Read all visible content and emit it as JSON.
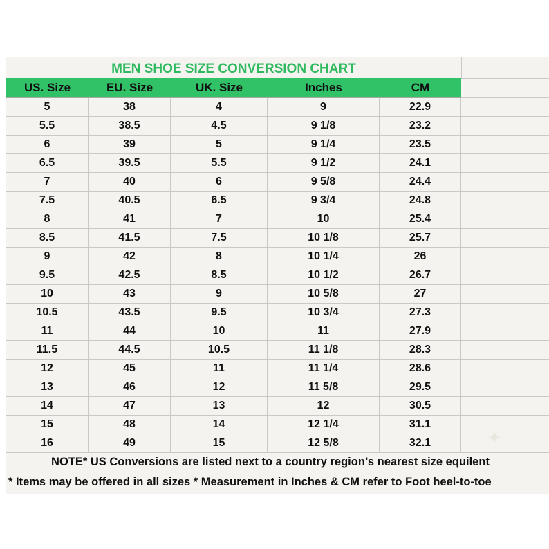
{
  "title": "MEN SHOE SIZE CONVERSION CHART",
  "columns": [
    "US. Size",
    "EU. Size",
    "UK. Size",
    "Inches",
    "CM"
  ],
  "rows": [
    [
      "5",
      "38",
      "4",
      "9",
      "22.9"
    ],
    [
      "5.5",
      "38.5",
      "4.5",
      "9 1/8",
      "23.2"
    ],
    [
      "6",
      "39",
      "5",
      "9 1/4",
      "23.5"
    ],
    [
      "6.5",
      "39.5",
      "5.5",
      "9 1/2",
      "24.1"
    ],
    [
      "7",
      "40",
      "6",
      "9 5/8",
      "24.4"
    ],
    [
      "7.5",
      "40.5",
      "6.5",
      "9 3/4",
      "24.8"
    ],
    [
      "8",
      "41",
      "7",
      "10",
      "25.4"
    ],
    [
      "8.5",
      "41.5",
      "7.5",
      "10 1/8",
      "25.7"
    ],
    [
      "9",
      "42",
      "8",
      "10 1/4",
      "26"
    ],
    [
      "9.5",
      "42.5",
      "8.5",
      "10 1/2",
      "26.7"
    ],
    [
      "10",
      "43",
      "9",
      "10 5/8",
      "27"
    ],
    [
      "10.5",
      "43.5",
      "9.5",
      "10 3/4",
      "27.3"
    ],
    [
      "11",
      "44",
      "10",
      "11",
      "27.9"
    ],
    [
      "11.5",
      "44.5",
      "10.5",
      "11 1/8",
      "28.3"
    ],
    [
      "12",
      "45",
      "11",
      "11 1/4",
      "28.6"
    ],
    [
      "13",
      "46",
      "12",
      "11 5/8",
      "29.5"
    ],
    [
      "14",
      "47",
      "13",
      "12",
      "30.5"
    ],
    [
      "15",
      "48",
      "14",
      "12 1/4",
      "31.1"
    ],
    [
      "16",
      "49",
      "15",
      "12 5/8",
      "32.1"
    ]
  ],
  "notes": {
    "line1": "NOTE* US Conversions are listed next to a country region’s nearest size equilent",
    "line2": "* Items may be offered in all sizes * Measurement in Inches & CM refer to Foot heel-to-toe"
  },
  "icons": {
    "watermark": "sparkle-icon"
  },
  "colors": {
    "accent": "#31c166",
    "title": "#2fba5f",
    "background": "#f4f3ef"
  }
}
